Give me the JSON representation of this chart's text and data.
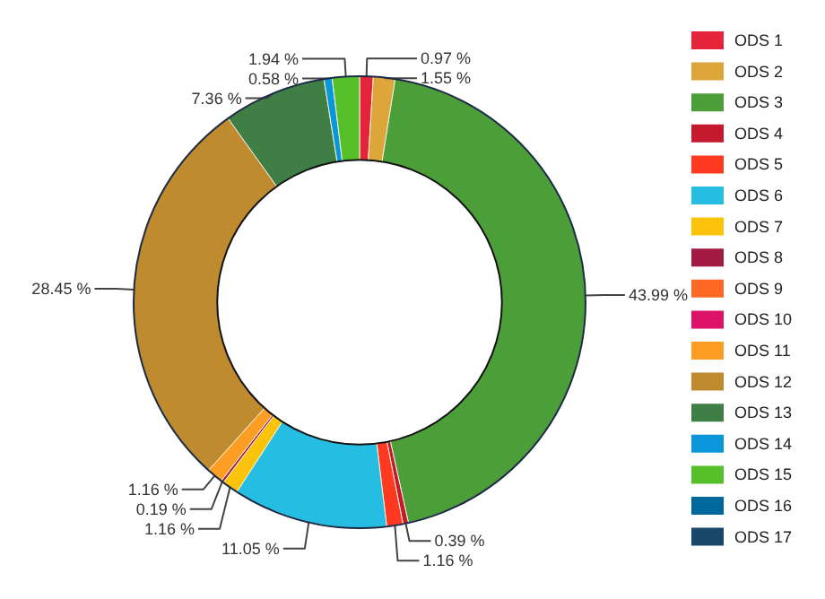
{
  "chart_data": {
    "type": "donut",
    "categories": [
      "ODS  1",
      "ODS  2",
      "ODS  3",
      "ODS  4",
      "ODS  5",
      "ODS  6",
      "ODS  7",
      "ODS  8",
      "ODS  9",
      "ODS 10",
      "ODS 11",
      "ODS 12",
      "ODS 13",
      "ODS 14",
      "ODS 15",
      "ODS 16",
      "ODS 17"
    ],
    "values": [
      0.97,
      1.55,
      43.99,
      0.39,
      1.16,
      11.05,
      1.16,
      0.19,
      0,
      0,
      1.16,
      28.45,
      7.36,
      0.58,
      1.94,
      0,
      0
    ],
    "value_labels": [
      "0.97 %",
      "1.55 %",
      "43.99 %",
      "0.39 %",
      "1.16 %",
      "11.05 %",
      "1.16 %",
      "0.19 %",
      null,
      null,
      "1.16 %",
      "28.45 %",
      "7.36 %",
      "0.58 %",
      "1.94 %",
      null,
      null
    ],
    "colors": [
      "#e5243b",
      "#dda63a",
      "#4c9f38",
      "#c5192d",
      "#ff3a21",
      "#26bde2",
      "#fcc30b",
      "#a21942",
      "#fd6925",
      "#dd1367",
      "#fd9d24",
      "#bf8b2e",
      "#3f7e44",
      "#0a97d9",
      "#56c02b",
      "#00689d",
      "#19486a"
    ],
    "legend": "right"
  }
}
